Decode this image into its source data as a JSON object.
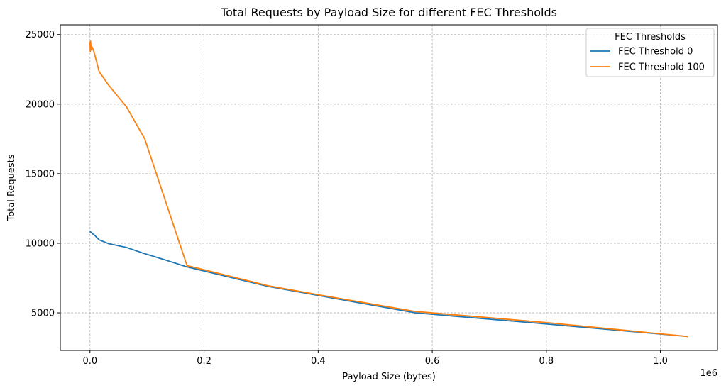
{
  "chart_data": {
    "type": "line",
    "title": "Total Requests by Payload Size for different FEC Thresholds",
    "xlabel": "Payload Size (bytes)",
    "ylabel": "Total Requests",
    "x_offset_label": "1e6",
    "xlim": [
      -52000,
      1100000
    ],
    "ylim": [
      2300,
      25700
    ],
    "xticks": [
      0,
      200000,
      400000,
      600000,
      800000,
      1000000
    ],
    "xtick_labels": [
      "0.0",
      "0.2",
      "0.4",
      "0.6",
      "0.8",
      "1.0"
    ],
    "yticks": [
      5000,
      10000,
      15000,
      20000,
      25000
    ],
    "ytick_labels": [
      "5000",
      "10000",
      "15000",
      "20000",
      "25000"
    ],
    "grid": true,
    "legend": {
      "title": "FEC Thresholds",
      "placement": "top-right"
    },
    "series": [
      {
        "name": "FEC Threshold 0",
        "color": "#1f77b4",
        "x": [
          0,
          1000,
          2000,
          4000,
          8000,
          16000,
          32000,
          64000,
          96000,
          128000,
          170000,
          312000,
          400000,
          570000,
          800000,
          1048000
        ],
        "y": [
          10900,
          10780,
          10800,
          10700,
          10580,
          10250,
          9980,
          9700,
          9250,
          8850,
          8300,
          6900,
          6250,
          5000,
          4200,
          3300
        ]
      },
      {
        "name": "FEC Threshold 100",
        "color": "#ff7f0e",
        "x": [
          0,
          500,
          1000,
          2000,
          4000,
          8000,
          16000,
          32000,
          64000,
          96000,
          170000,
          312000,
          400000,
          570000,
          800000,
          1048000
        ],
        "y": [
          24500,
          23750,
          24550,
          23900,
          24100,
          23600,
          22350,
          21400,
          19800,
          17500,
          8400,
          6950,
          6300,
          5100,
          4300,
          3300
        ]
      }
    ]
  }
}
